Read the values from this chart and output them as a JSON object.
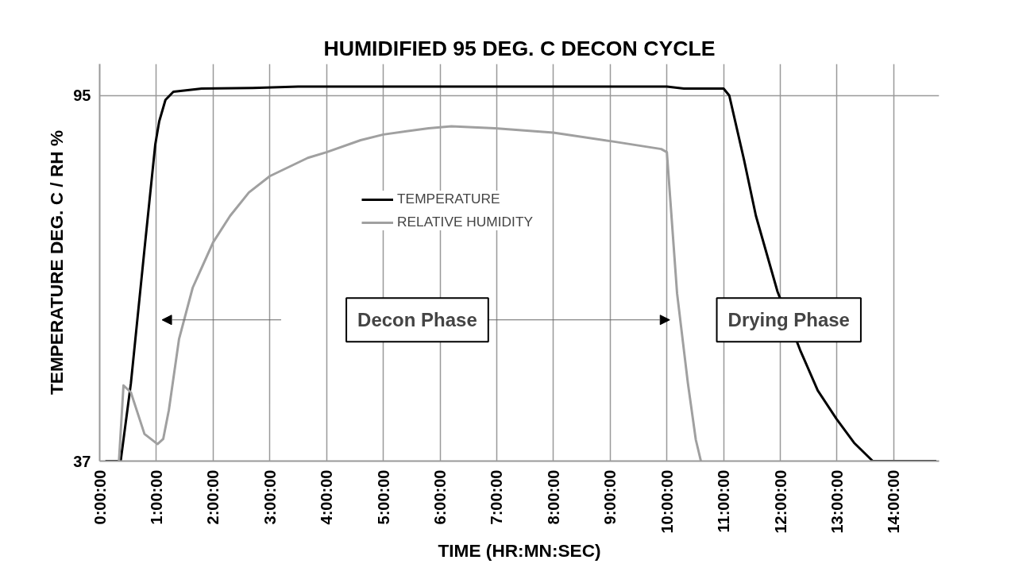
{
  "chart_data": {
    "type": "line",
    "title": "HUMIDIFIED 95 DEG. C DECON CYCLE",
    "xlabel": "TIME (HR:MN:SEC)",
    "ylabel": "TEMPERATURE DEG. C / RH %",
    "xlim": [
      0,
      14.8
    ],
    "ylim": [
      37,
      100
    ],
    "xticks": [
      {
        "value": 0,
        "label": "0:00:00"
      },
      {
        "value": 1,
        "label": "1:00:00"
      },
      {
        "value": 2,
        "label": "2:00:00"
      },
      {
        "value": 3,
        "label": "3:00:00"
      },
      {
        "value": 4,
        "label": "4:00:00"
      },
      {
        "value": 5,
        "label": "5:00:00"
      },
      {
        "value": 6,
        "label": "6:00:00"
      },
      {
        "value": 7,
        "label": "7:00:00"
      },
      {
        "value": 8,
        "label": "8:00:00"
      },
      {
        "value": 9,
        "label": "9:00:00"
      },
      {
        "value": 10,
        "label": "10:00:00"
      },
      {
        "value": 11,
        "label": "11:00:00"
      },
      {
        "value": 12,
        "label": "12:00:00"
      },
      {
        "value": 13,
        "label": "13:00:00"
      },
      {
        "value": 14,
        "label": "14:00:00"
      }
    ],
    "yticks": [
      37,
      95
    ],
    "grid": true,
    "legend": "top",
    "line_style": "solid",
    "series": [
      {
        "name": "TEMPERATURE",
        "color": "#000000",
        "x": [
          0.1,
          0.37,
          0.55,
          0.79,
          0.98,
          1.05,
          1.16,
          1.3,
          1.8,
          2.7,
          3.5,
          5,
          7,
          9,
          10,
          10.3,
          11,
          11.1,
          11.36,
          11.57,
          11.95,
          12.35,
          12.66,
          12.99,
          13.3,
          13.63,
          14.75
        ],
        "values": [
          37,
          37,
          49.3,
          70.6,
          87.2,
          90.9,
          94.3,
          95.6,
          96.1,
          96.2,
          96.4,
          96.4,
          96.4,
          96.4,
          96.4,
          96.1,
          96.1,
          95,
          84.8,
          75.9,
          63.9,
          54.6,
          48.2,
          43.7,
          39.9,
          37,
          37
        ]
      },
      {
        "name": "RELATIVE HUMIDITY",
        "color": "#a0a0a0",
        "x": [
          0.34,
          0.42,
          0.55,
          0.79,
          1.02,
          1.12,
          1.22,
          1.4,
          1.64,
          2.0,
          2.3,
          2.63,
          3.0,
          3.67,
          4.0,
          4.6,
          5.0,
          5.8,
          6.2,
          6.97,
          8.0,
          9.05,
          9.9,
          10.0,
          10.18,
          10.37,
          10.51,
          10.6
        ],
        "values": [
          37,
          49.0,
          47.9,
          41.3,
          39.7,
          40.5,
          45.1,
          56.4,
          64.5,
          71.7,
          75.9,
          79.6,
          82.2,
          85.1,
          86.0,
          87.9,
          88.8,
          89.8,
          90.1,
          89.8,
          89.1,
          87.7,
          86.5,
          86.0,
          63.6,
          49.4,
          40.4,
          37
        ]
      }
    ],
    "annotations": [
      "Decon Phase",
      "Drying Phase"
    ]
  }
}
